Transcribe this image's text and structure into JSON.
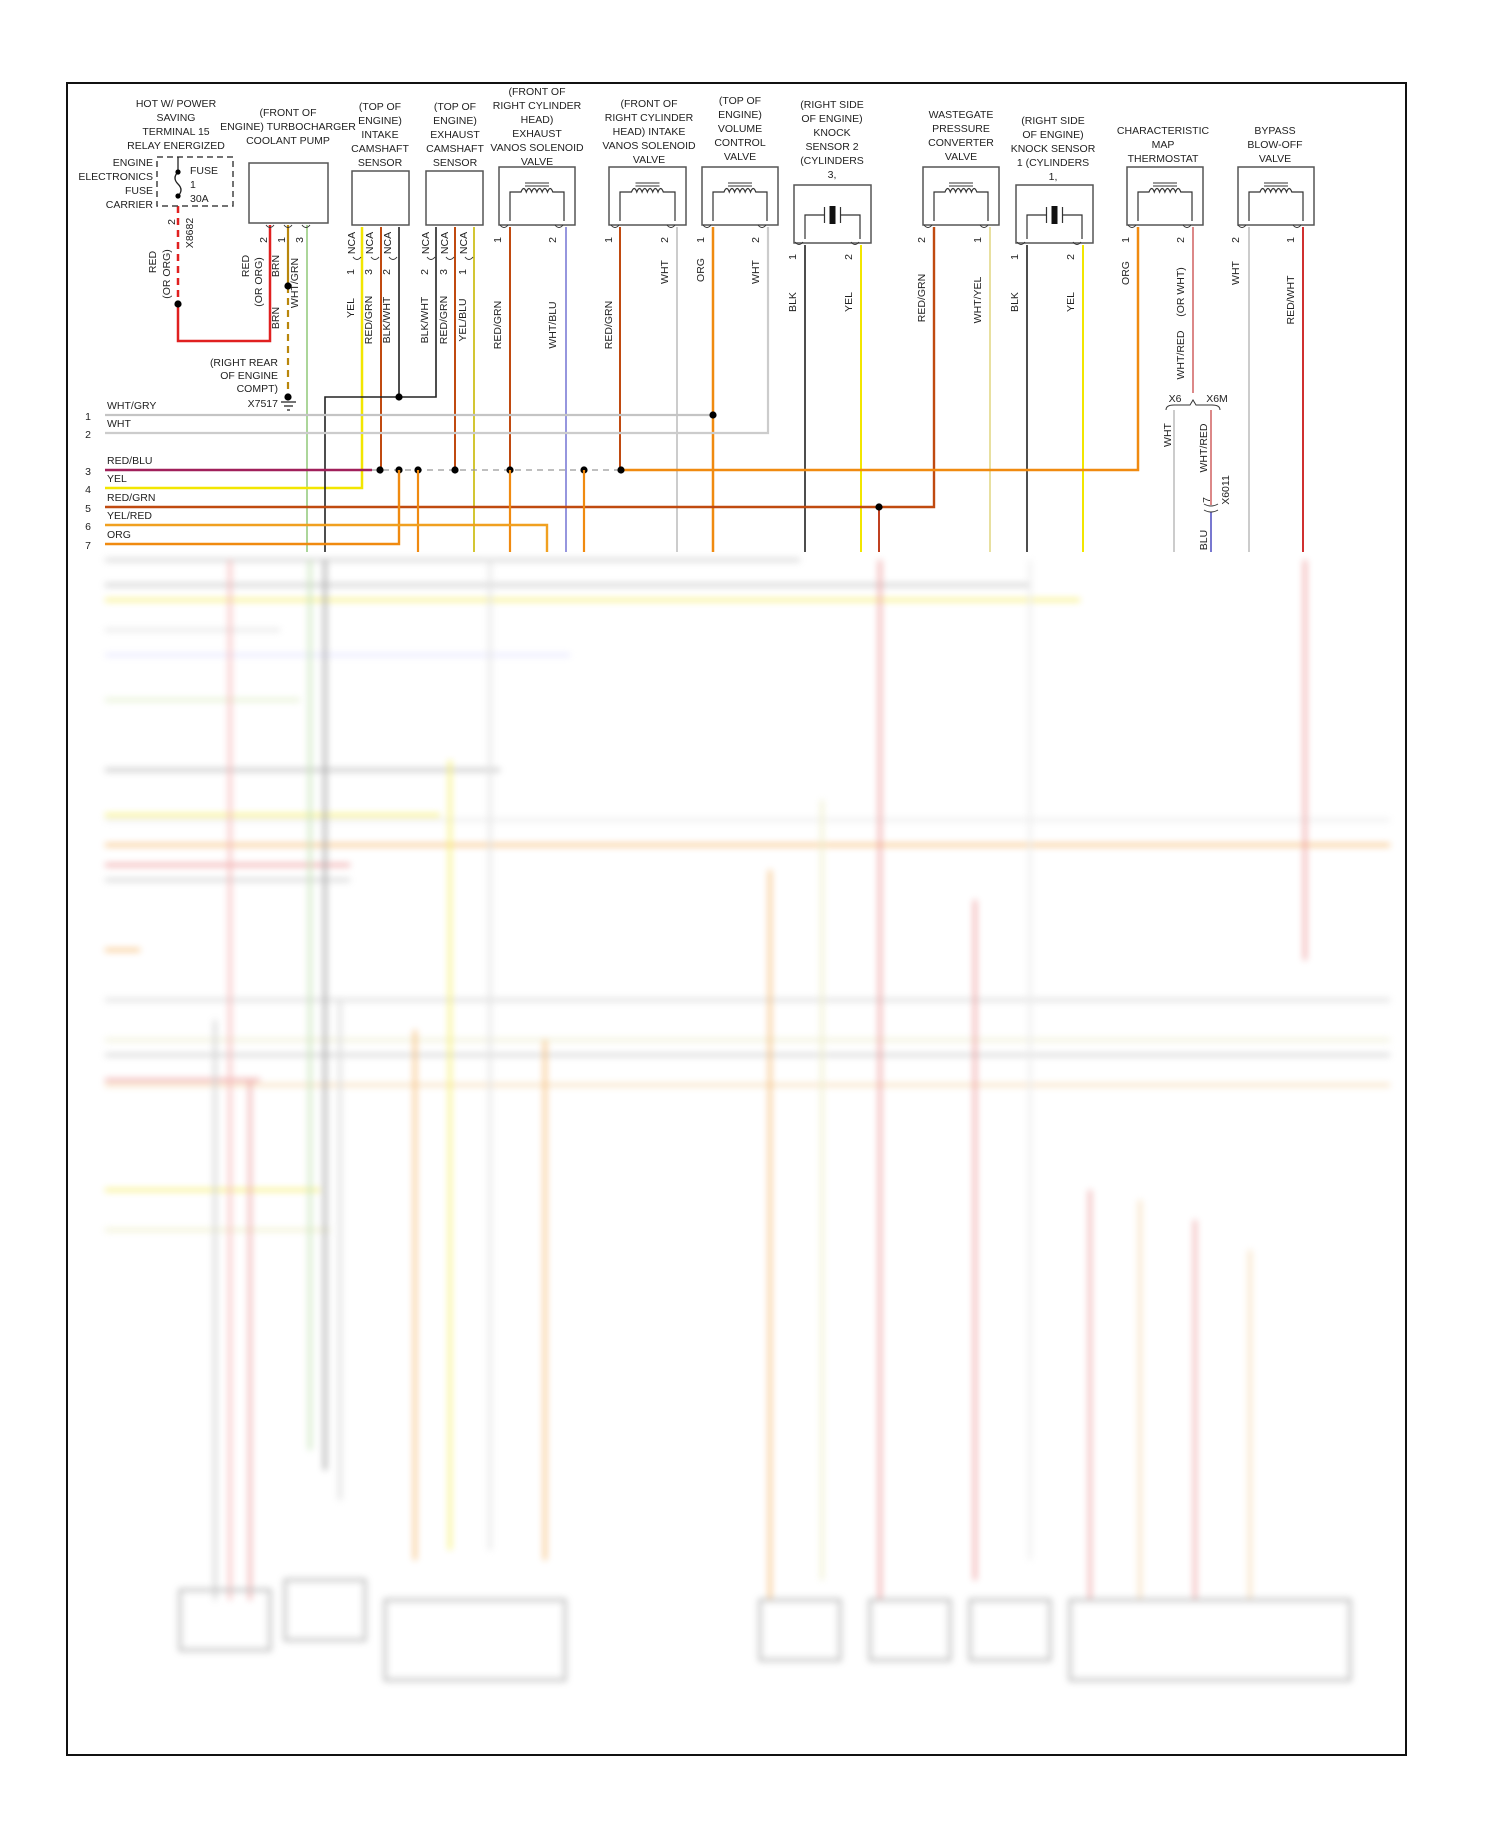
{
  "fuse_carrier": {
    "title": [
      "HOT W/ POWER",
      "SAVING",
      "TERMINAL 15",
      "RELAY ENERGIZED"
    ],
    "label": [
      "ENGINE",
      "ELECTRONICS",
      "FUSE",
      "CARRIER"
    ],
    "fuse": [
      "FUSE",
      "1",
      "30A"
    ],
    "connector": "X8682",
    "pin": "2",
    "wire": [
      "RED",
      "(OR ORG)"
    ]
  },
  "ground": {
    "label": [
      "(RIGHT REAR",
      "OF ENGINE",
      "COMPT)"
    ],
    "id": "X7517"
  },
  "components": [
    {
      "title": [
        "(FRONT OF",
        "ENGINE) TURBOCHARGER",
        "COOLANT PUMP"
      ],
      "pins": [
        "2",
        "1",
        "3"
      ],
      "wires": [
        "RED",
        "(OR ORG)",
        "BRN",
        "WHT/GRN",
        "BRN"
      ]
    },
    {
      "title": [
        "(TOP OF",
        "ENGINE)",
        "INTAKE",
        "CAMSHAFT",
        "SENSOR"
      ],
      "nca": [
        "NCA",
        "NCA",
        "NCA"
      ],
      "pins": [
        "1",
        "3",
        "2"
      ],
      "wires": [
        "YEL",
        "RED/GRN",
        "BLK/WHT"
      ]
    },
    {
      "title": [
        "(TOP OF",
        "ENGINE)",
        "EXHAUST",
        "CAMSHAFT",
        "SENSOR"
      ],
      "nca": [
        "NCA",
        "NCA",
        "NCA"
      ],
      "pins": [
        "2",
        "3",
        "1"
      ],
      "wires": [
        "BLK/WHT",
        "RED/GRN",
        "YEL/BLU"
      ]
    },
    {
      "title": [
        "(FRONT OF",
        "RIGHT CYLINDER",
        "HEAD)",
        "EXHAUST",
        "VANOS SOLENOID",
        "VALVE"
      ],
      "pins": [
        "1",
        "2"
      ],
      "wires": [
        "RED/GRN",
        "WHT/BLU"
      ]
    },
    {
      "title": [
        "(FRONT OF",
        "RIGHT CYLINDER",
        "HEAD) INTAKE",
        "VANOS SOLENOID",
        "VALVE"
      ],
      "pins": [
        "1",
        "2"
      ],
      "wires": [
        "RED/GRN",
        "WHT"
      ]
    },
    {
      "title": [
        "(TOP OF",
        "ENGINE)",
        "VOLUME",
        "CONTROL",
        "VALVE"
      ],
      "pins": [
        "1",
        "2"
      ],
      "wires": [
        "ORG",
        "WHT"
      ]
    },
    {
      "title": [
        "(RIGHT SIDE",
        "OF ENGINE)",
        "KNOCK",
        "SENSOR 2",
        "(CYLINDERS",
        "3,"
      ],
      "pins": [
        "1",
        "2"
      ],
      "wires": [
        "BLK",
        "YEL"
      ]
    },
    {
      "title": [
        "WASTEGATE",
        "PRESSURE",
        "CONVERTER",
        "VALVE"
      ],
      "pins": [
        "2",
        "1"
      ],
      "wires": [
        "RED/GRN",
        "WHT/YEL"
      ]
    },
    {
      "title": [
        "(RIGHT SIDE",
        "OF ENGINE)",
        "KNOCK SENSOR",
        "1 (CYLINDERS",
        "1,"
      ],
      "pins": [
        "1",
        "2"
      ],
      "wires": [
        "BLK",
        "YEL"
      ]
    },
    {
      "title": [
        "CHARACTERISTIC",
        "MAP",
        "THERMOSTAT"
      ],
      "pins": [
        "1",
        "2"
      ],
      "wires": [
        "ORG",
        "(OR WHT)",
        "WHT/RED"
      ]
    },
    {
      "title": [
        "BYPASS",
        "BLOW-OFF",
        "VALVE"
      ],
      "pins": [
        "2",
        "1"
      ],
      "wires": [
        "WHT",
        "RED/WHT"
      ]
    }
  ],
  "rows": [
    {
      "num": "1",
      "label": "WHT/GRY",
      "color": "#c4c4c4"
    },
    {
      "num": "2",
      "label": "WHT",
      "color": "#cfcfcf"
    },
    {
      "num": "3",
      "label": "RED/BLU",
      "color": "#a0205a"
    },
    {
      "num": "4",
      "label": "YEL",
      "color": "#f2e600"
    },
    {
      "num": "5",
      "label": "RED/GRN",
      "color": "#c04a10"
    },
    {
      "num": "6",
      "label": "YEL/RED",
      "color": "#f08a10"
    },
    {
      "num": "7",
      "label": "ORG",
      "color": "#f08a10"
    }
  ],
  "inline_connector": {
    "left": "X6",
    "right": "X6M",
    "wires": [
      "WHT",
      "WHT/RED",
      "BLU"
    ],
    "splice": "X6011",
    "pin": "7"
  },
  "wire_colors": {
    "RED": "#e02020",
    "BRN": "#b8860b",
    "WHT/GRN": "#98cc80",
    "YEL": "#f2e600",
    "RED/GRN": "#c04a10",
    "BLK/WHT": "#222222",
    "YEL/BLU": "#c8b800",
    "WHT/BLU": "#6a6ad0",
    "WHT": "#cccccc",
    "ORG": "#f08a10",
    "BLK": "#222222",
    "WHT/YEL": "#e8e0a0",
    "WHT/RED": "#d06060",
    "RED/WHT": "#d03030",
    "BLU": "#4a4ac0"
  }
}
